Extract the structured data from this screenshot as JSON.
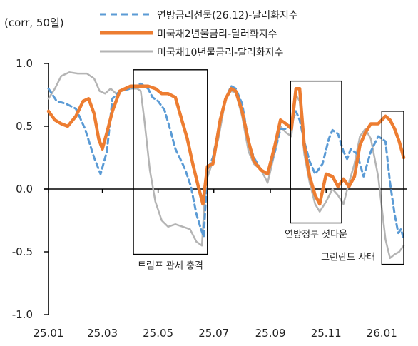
{
  "chart_data": {
    "type": "line",
    "unit_label": "(corr, 50일)",
    "ylim": [
      -1.0,
      1.0
    ],
    "y_ticks": [
      "1.0",
      "0.5",
      "0.0",
      "-0.5",
      "-1.0"
    ],
    "y_tick_values": [
      1.0,
      0.5,
      0.0,
      -0.5,
      -1.0
    ],
    "x_range": [
      "2025-01-01",
      "2026-01-25"
    ],
    "x_ticks": [
      "25.01",
      "25.03",
      "25.05",
      "25.07",
      "25.09",
      "25.11",
      "26.01"
    ],
    "x_tick_dates": [
      "2025-01-01",
      "2025-03-01",
      "2025-05-01",
      "2025-07-01",
      "2025-09-01",
      "2025-11-01",
      "2026-01-01"
    ],
    "grid": false,
    "legend_position": "top",
    "series": [
      {
        "name": "연방금리선물(26.12)-달러화지수",
        "color": "#5b9bd5",
        "style": "dashed",
        "points": [
          [
            "2025-01-01",
            0.8
          ],
          [
            "2025-01-10",
            0.7
          ],
          [
            "2025-01-20",
            0.68
          ],
          [
            "2025-01-31",
            0.64
          ],
          [
            "2025-02-10",
            0.48
          ],
          [
            "2025-02-20",
            0.25
          ],
          [
            "2025-02-27",
            0.12
          ],
          [
            "2025-03-06",
            0.3
          ],
          [
            "2025-03-12",
            0.72
          ],
          [
            "2025-03-20",
            0.78
          ],
          [
            "2025-04-01",
            0.8
          ],
          [
            "2025-04-12",
            0.84
          ],
          [
            "2025-04-20",
            0.8
          ],
          [
            "2025-04-25",
            0.73
          ],
          [
            "2025-05-01",
            0.7
          ],
          [
            "2025-05-08",
            0.63
          ],
          [
            "2025-05-14",
            0.48
          ],
          [
            "2025-05-20",
            0.32
          ],
          [
            "2025-05-26",
            0.23
          ],
          [
            "2025-05-31",
            0.15
          ],
          [
            "2025-06-06",
            0.02
          ],
          [
            "2025-06-12",
            -0.2
          ],
          [
            "2025-06-17",
            -0.32
          ],
          [
            "2025-06-20",
            -0.38
          ],
          [
            "2025-06-24",
            0.15
          ],
          [
            "2025-06-30",
            0.25
          ],
          [
            "2025-07-08",
            0.55
          ],
          [
            "2025-07-14",
            0.72
          ],
          [
            "2025-07-20",
            0.82
          ],
          [
            "2025-07-25",
            0.8
          ],
          [
            "2025-08-01",
            0.68
          ],
          [
            "2025-08-08",
            0.38
          ],
          [
            "2025-08-14",
            0.25
          ],
          [
            "2025-08-22",
            0.15
          ],
          [
            "2025-08-29",
            0.12
          ],
          [
            "2025-09-06",
            0.3
          ],
          [
            "2025-09-12",
            0.48
          ],
          [
            "2025-09-18",
            0.48
          ],
          [
            "2025-09-24",
            0.52
          ],
          [
            "2025-09-29",
            0.62
          ],
          [
            "2025-10-03",
            0.55
          ],
          [
            "2025-10-08",
            0.38
          ],
          [
            "2025-10-14",
            0.22
          ],
          [
            "2025-10-20",
            0.12
          ],
          [
            "2025-10-28",
            0.2
          ],
          [
            "2025-11-04",
            0.4
          ],
          [
            "2025-11-08",
            0.47
          ],
          [
            "2025-11-14",
            0.44
          ],
          [
            "2025-11-20",
            0.3
          ],
          [
            "2025-11-24",
            0.24
          ],
          [
            "2025-11-28",
            0.32
          ],
          [
            "2025-12-05",
            0.28
          ],
          [
            "2025-12-12",
            0.1
          ],
          [
            "2025-12-20",
            0.3
          ],
          [
            "2025-12-28",
            0.42
          ],
          [
            "2026-01-05",
            0.38
          ],
          [
            "2026-01-10",
            0.05
          ],
          [
            "2026-01-15",
            -0.2
          ],
          [
            "2026-01-19",
            -0.35
          ],
          [
            "2026-01-22",
            -0.32
          ],
          [
            "2026-01-25",
            -0.4
          ]
        ]
      },
      {
        "name": "미국채2년물금리-달러화지수",
        "color": "#ed7d31",
        "style": "solid",
        "points": [
          [
            "2025-01-01",
            0.62
          ],
          [
            "2025-01-08",
            0.55
          ],
          [
            "2025-01-15",
            0.52
          ],
          [
            "2025-01-22",
            0.5
          ],
          [
            "2025-01-31",
            0.58
          ],
          [
            "2025-02-08",
            0.7
          ],
          [
            "2025-02-14",
            0.72
          ],
          [
            "2025-02-20",
            0.6
          ],
          [
            "2025-02-25",
            0.4
          ],
          [
            "2025-03-01",
            0.32
          ],
          [
            "2025-03-06",
            0.45
          ],
          [
            "2025-03-12",
            0.62
          ],
          [
            "2025-03-20",
            0.78
          ],
          [
            "2025-04-01",
            0.82
          ],
          [
            "2025-04-12",
            0.82
          ],
          [
            "2025-04-20",
            0.82
          ],
          [
            "2025-04-28",
            0.8
          ],
          [
            "2025-05-05",
            0.76
          ],
          [
            "2025-05-12",
            0.76
          ],
          [
            "2025-05-20",
            0.73
          ],
          [
            "2025-05-27",
            0.55
          ],
          [
            "2025-06-02",
            0.4
          ],
          [
            "2025-06-08",
            0.2
          ],
          [
            "2025-06-14",
            0.02
          ],
          [
            "2025-06-19",
            -0.12
          ],
          [
            "2025-06-24",
            0.18
          ],
          [
            "2025-06-30",
            0.2
          ],
          [
            "2025-07-08",
            0.55
          ],
          [
            "2025-07-14",
            0.72
          ],
          [
            "2025-07-20",
            0.8
          ],
          [
            "2025-07-25",
            0.78
          ],
          [
            "2025-08-01",
            0.62
          ],
          [
            "2025-08-08",
            0.38
          ],
          [
            "2025-08-14",
            0.22
          ],
          [
            "2025-08-22",
            0.15
          ],
          [
            "2025-08-29",
            0.12
          ],
          [
            "2025-09-06",
            0.35
          ],
          [
            "2025-09-12",
            0.55
          ],
          [
            "2025-09-18",
            0.52
          ],
          [
            "2025-09-24",
            0.48
          ],
          [
            "2025-09-29",
            0.8
          ],
          [
            "2025-10-03",
            0.8
          ],
          [
            "2025-10-08",
            0.35
          ],
          [
            "2025-10-14",
            0.1
          ],
          [
            "2025-10-20",
            -0.05
          ],
          [
            "2025-10-25",
            -0.12
          ],
          [
            "2025-11-01",
            0.12
          ],
          [
            "2025-11-08",
            0.1
          ],
          [
            "2025-11-14",
            0.02
          ],
          [
            "2025-11-20",
            0.08
          ],
          [
            "2025-11-26",
            0.02
          ],
          [
            "2025-12-02",
            0.1
          ],
          [
            "2025-12-08",
            0.35
          ],
          [
            "2025-12-14",
            0.45
          ],
          [
            "2025-12-20",
            0.52
          ],
          [
            "2025-12-28",
            0.52
          ],
          [
            "2026-01-05",
            0.58
          ],
          [
            "2026-01-10",
            0.55
          ],
          [
            "2026-01-15",
            0.48
          ],
          [
            "2026-01-20",
            0.38
          ],
          [
            "2026-01-25",
            0.25
          ]
        ]
      },
      {
        "name": "미국채10년물금리-달러화지수",
        "color": "#b4b4b4",
        "style": "solid",
        "points": [
          [
            "2025-01-01",
            0.72
          ],
          [
            "2025-01-08",
            0.8
          ],
          [
            "2025-01-15",
            0.9
          ],
          [
            "2025-01-24",
            0.93
          ],
          [
            "2025-02-02",
            0.92
          ],
          [
            "2025-02-12",
            0.92
          ],
          [
            "2025-02-20",
            0.88
          ],
          [
            "2025-02-26",
            0.78
          ],
          [
            "2025-03-04",
            0.76
          ],
          [
            "2025-03-10",
            0.8
          ],
          [
            "2025-03-16",
            0.76
          ],
          [
            "2025-03-22",
            0.78
          ],
          [
            "2025-04-01",
            0.8
          ],
          [
            "2025-04-08",
            0.8
          ],
          [
            "2025-04-12",
            0.78
          ],
          [
            "2025-04-16",
            0.55
          ],
          [
            "2025-04-22",
            0.15
          ],
          [
            "2025-04-28",
            -0.1
          ],
          [
            "2025-05-05",
            -0.25
          ],
          [
            "2025-05-12",
            -0.3
          ],
          [
            "2025-05-20",
            -0.28
          ],
          [
            "2025-05-28",
            -0.3
          ],
          [
            "2025-06-05",
            -0.32
          ],
          [
            "2025-06-12",
            -0.42
          ],
          [
            "2025-06-18",
            -0.45
          ],
          [
            "2025-06-22",
            0.05
          ],
          [
            "2025-06-28",
            0.18
          ],
          [
            "2025-07-06",
            0.4
          ],
          [
            "2025-07-14",
            0.72
          ],
          [
            "2025-07-20",
            0.78
          ],
          [
            "2025-07-25",
            0.77
          ],
          [
            "2025-08-01",
            0.58
          ],
          [
            "2025-08-08",
            0.3
          ],
          [
            "2025-08-14",
            0.2
          ],
          [
            "2025-08-22",
            0.15
          ],
          [
            "2025-08-29",
            0.05
          ],
          [
            "2025-09-06",
            0.3
          ],
          [
            "2025-09-12",
            0.5
          ],
          [
            "2025-09-18",
            0.45
          ],
          [
            "2025-09-24",
            0.42
          ],
          [
            "2025-09-29",
            0.75
          ],
          [
            "2025-10-03",
            0.7
          ],
          [
            "2025-10-08",
            0.28
          ],
          [
            "2025-10-14",
            0.05
          ],
          [
            "2025-10-20",
            -0.12
          ],
          [
            "2025-10-25",
            -0.18
          ],
          [
            "2025-11-01",
            -0.1
          ],
          [
            "2025-11-08",
            0.0
          ],
          [
            "2025-11-14",
            -0.05
          ],
          [
            "2025-11-20",
            -0.12
          ],
          [
            "2025-11-26",
            0.05
          ],
          [
            "2025-12-02",
            0.2
          ],
          [
            "2025-12-08",
            0.42
          ],
          [
            "2025-12-14",
            0.48
          ],
          [
            "2025-12-20",
            0.4
          ],
          [
            "2025-12-28",
            0.1
          ],
          [
            "2026-01-05",
            -0.4
          ],
          [
            "2026-01-10",
            -0.55
          ],
          [
            "2026-01-15",
            -0.52
          ],
          [
            "2026-01-20",
            -0.5
          ],
          [
            "2026-01-25",
            -0.45
          ]
        ]
      }
    ],
    "annotations": [
      {
        "label": "트럼프 관세 충격",
        "from": "2025-04-04",
        "to": "2025-06-24",
        "ymin": -0.52,
        "ymax": 0.95,
        "label_placement": "below"
      },
      {
        "label": "연방정부 셧다운",
        "from": "2025-09-23",
        "to": "2025-11-18",
        "ymin": -0.27,
        "ymax": 0.86,
        "label_placement": "below"
      },
      {
        "label": "그린란드 사태",
        "from": "2026-01-01",
        "to": "2026-01-25",
        "ymin": -0.6,
        "ymax": 0.62,
        "label_placement": "left-below"
      }
    ]
  }
}
